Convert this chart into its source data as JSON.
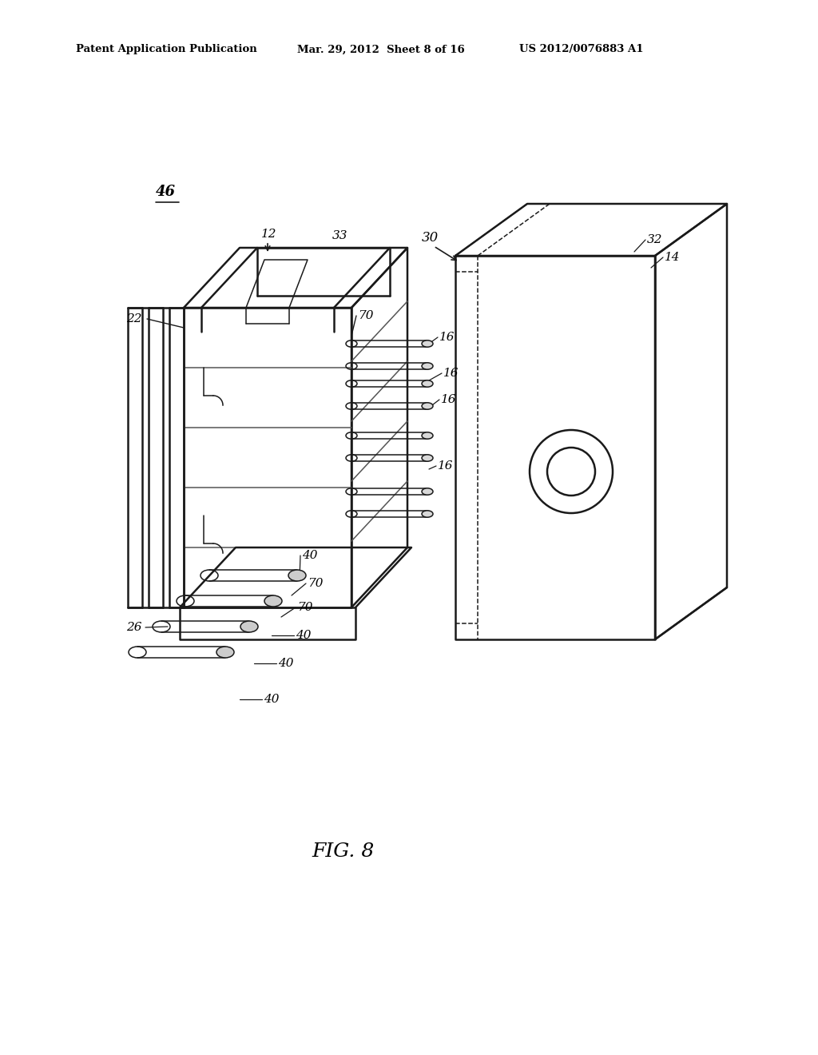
{
  "bg_color": "#ffffff",
  "line_color": "#1a1a1a",
  "fig_width": 10.24,
  "fig_height": 13.2,
  "header_text": "Patent Application Publication",
  "header_date": "Mar. 29, 2012  Sheet 8 of 16",
  "header_patent": "US 2012/0076883 A1",
  "figure_label": "FIG. 8",
  "label_46": "46",
  "label_12": "12",
  "label_33": "33",
  "label_22": "22",
  "label_70a": "70",
  "label_70b": "70",
  "label_70c": "70",
  "label_16a": "16",
  "label_16b": "16",
  "label_16c": "16",
  "label_16d": "16",
  "label_40a": "40",
  "label_40b": "40",
  "label_40c": "40",
  "label_40d": "40",
  "label_26": "26",
  "label_30": "30",
  "label_32": "32",
  "label_14": "14"
}
